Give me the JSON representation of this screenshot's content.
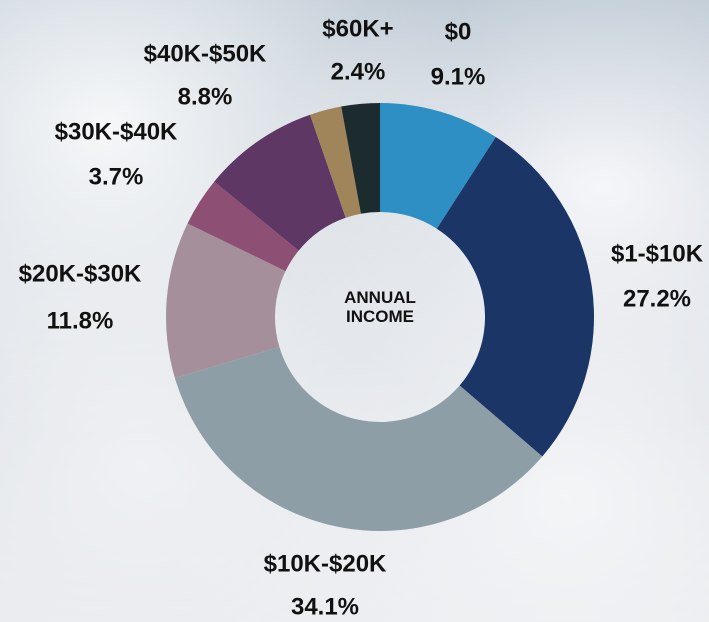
{
  "chart_data": {
    "type": "donut",
    "center_label": "ANNUAL INCOME",
    "categories": [
      "$0",
      "$1-$10K",
      "$10K-$20K",
      "$20K-$30K",
      "$30K-$40K",
      "$40K-$50K",
      "$60K+",
      null
    ],
    "values": [
      9.1,
      27.2,
      34.1,
      11.8,
      3.7,
      8.8,
      2.4,
      2.9
    ],
    "value_labels": [
      "9.1%",
      "27.2%",
      "34.1%",
      "11.8%",
      "3.7%",
      "8.8%",
      "2.4%",
      null
    ],
    "colors": [
      "#2e8fc4",
      "#1a3566",
      "#8d9ea6",
      "#a48f9a",
      "#8e4f74",
      "#5e3764",
      "#a0855a",
      "#1c2b2d"
    ]
  }
}
